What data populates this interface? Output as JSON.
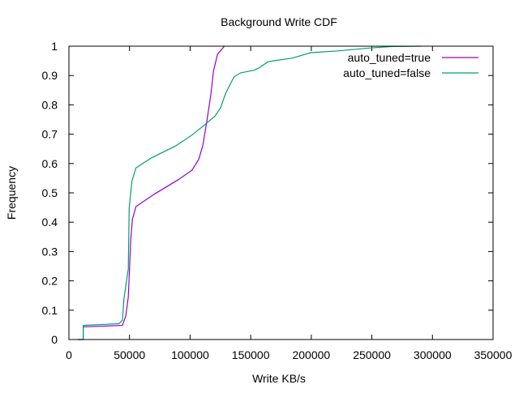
{
  "chart_data": {
    "type": "line",
    "title": "Background Write CDF",
    "xlabel": "Write KB/s",
    "ylabel": "Frequency",
    "xlim": [
      0,
      350000
    ],
    "ylim": [
      0,
      1
    ],
    "xticks": [
      0,
      50000,
      100000,
      150000,
      200000,
      250000,
      300000,
      350000
    ],
    "yticks": [
      0,
      0.1,
      0.2,
      0.3,
      0.4,
      0.5,
      0.6,
      0.7,
      0.8,
      0.9,
      1
    ],
    "xtick_labels": [
      "0",
      "50000",
      "100000",
      "150000",
      "200000",
      "250000",
      "300000",
      "350000"
    ],
    "ytick_labels": [
      "0",
      "0.1",
      "0.2",
      "0.3",
      "0.4",
      "0.5",
      "0.6",
      "0.7",
      "0.8",
      "0.9",
      "1"
    ],
    "grid": false,
    "legend_position": "top-right",
    "series": [
      {
        "name": "auto_tuned=true",
        "color": "#9400d3",
        "x": [
          7400,
          11800,
          11800,
          44200,
          46900,
          49000,
          50000,
          51000,
          52400,
          55300,
          70300,
          90300,
          101500,
          107100,
          110400,
          113800,
          117100,
          119400,
          122700,
          128300
        ],
        "y": [
          0,
          0,
          0.043,
          0.048,
          0.08,
          0.145,
          0.24,
          0.34,
          0.41,
          0.453,
          0.495,
          0.545,
          0.577,
          0.614,
          0.66,
          0.743,
          0.835,
          0.918,
          0.973,
          1.0
        ]
      },
      {
        "name": "auto_tuned=false",
        "color": "#009e73",
        "x": [
          7400,
          11800,
          11800,
          41300,
          44200,
          45300,
          47500,
          49000,
          49700,
          50400,
          52000,
          55300,
          68000,
          88100,
          101500,
          112600,
          120500,
          125000,
          129400,
          136100,
          141700,
          152800,
          157300,
          164000,
          168500,
          184000,
          199700,
          222000,
          248800,
          266600,
          290500
        ],
        "y": [
          0,
          0,
          0.048,
          0.054,
          0.066,
          0.135,
          0.2,
          0.24,
          0.448,
          0.476,
          0.54,
          0.585,
          0.619,
          0.66,
          0.697,
          0.734,
          0.762,
          0.789,
          0.84,
          0.895,
          0.909,
          0.918,
          0.927,
          0.946,
          0.95,
          0.959,
          0.978,
          0.984,
          0.994,
          0.999,
          1.0
        ]
      }
    ]
  }
}
